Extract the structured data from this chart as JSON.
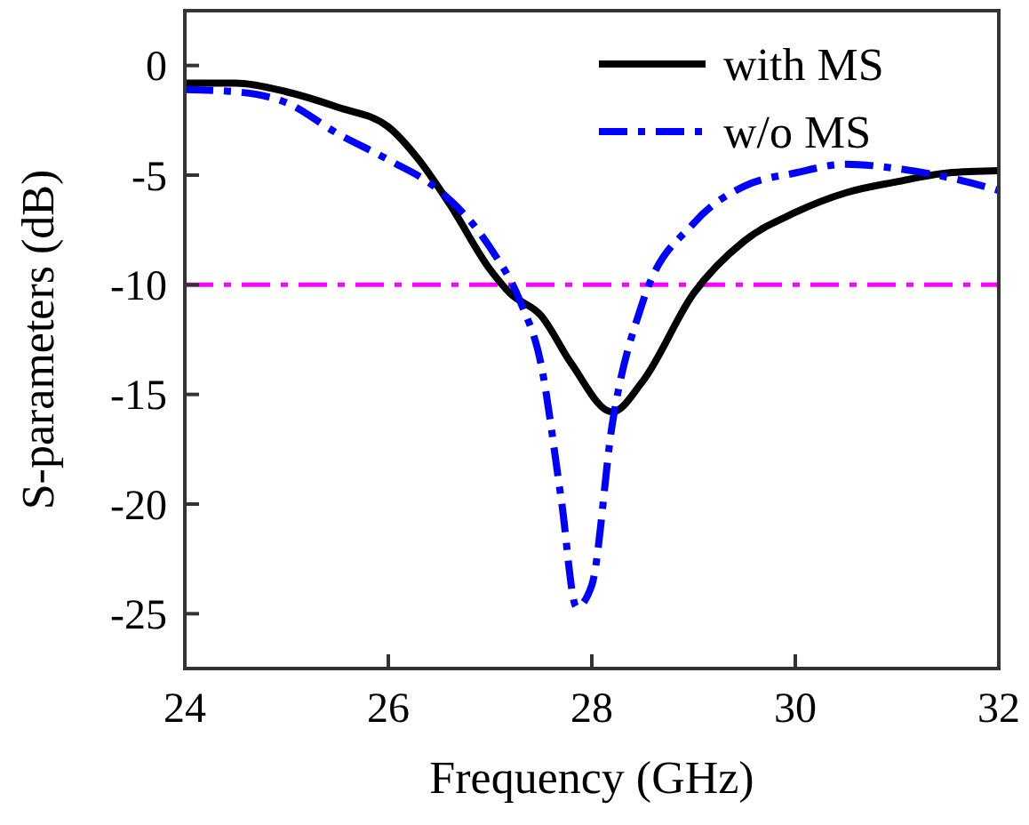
{
  "chart_data": {
    "type": "line",
    "xlabel": "Frequency (GHz)",
    "ylabel": "S-parameters (dB)",
    "xlim": [
      24,
      32
    ],
    "xticks": [
      24,
      26,
      28,
      30,
      32
    ],
    "ylim": [
      -27.5,
      2.5
    ],
    "yticks": [
      0,
      -5,
      -10,
      -15,
      -20,
      -25
    ],
    "legend": "top right",
    "grid": false,
    "series": [
      {
        "name": "with MS",
        "color": "#000000",
        "line_style": "solid",
        "x": [
          24,
          24.5,
          25,
          25.5,
          26,
          26.3,
          26.6,
          27,
          27.2,
          27.5,
          27.8,
          28.2,
          28.5,
          29,
          29.5,
          30,
          30.5,
          31,
          31.5,
          32
        ],
        "values": [
          -0.8,
          -0.8,
          -1.2,
          -1.9,
          -2.8,
          -4.3,
          -6.3,
          -9.3,
          -10.4,
          -11.4,
          -13.6,
          -15.8,
          -14.4,
          -10.4,
          -8,
          -6.7,
          -5.8,
          -5.3,
          -4.9,
          -4.8
        ]
      },
      {
        "name": "w/o MS",
        "color": "#0000ff",
        "line_style": "dashed",
        "x": [
          24,
          24.5,
          25,
          25.5,
          26,
          26.5,
          27,
          27.3,
          27.5,
          27.7,
          27.85,
          28,
          28.2,
          28.5,
          29,
          29.5,
          30,
          30.5,
          31,
          31.5,
          32
        ],
        "values": [
          -1.1,
          -1.2,
          -1.7,
          -3.1,
          -4.3,
          -5.7,
          -8.3,
          -10.8,
          -13.6,
          -19.8,
          -24.7,
          -23.7,
          -16.4,
          -10.8,
          -7.2,
          -5.5,
          -4.9,
          -4.5,
          -4.7,
          -5.1,
          -5.7
        ]
      }
    ],
    "ref_lines": [
      {
        "axis": "y",
        "value": -10,
        "color": "#ff00ff",
        "line_style": "dashed"
      }
    ]
  }
}
